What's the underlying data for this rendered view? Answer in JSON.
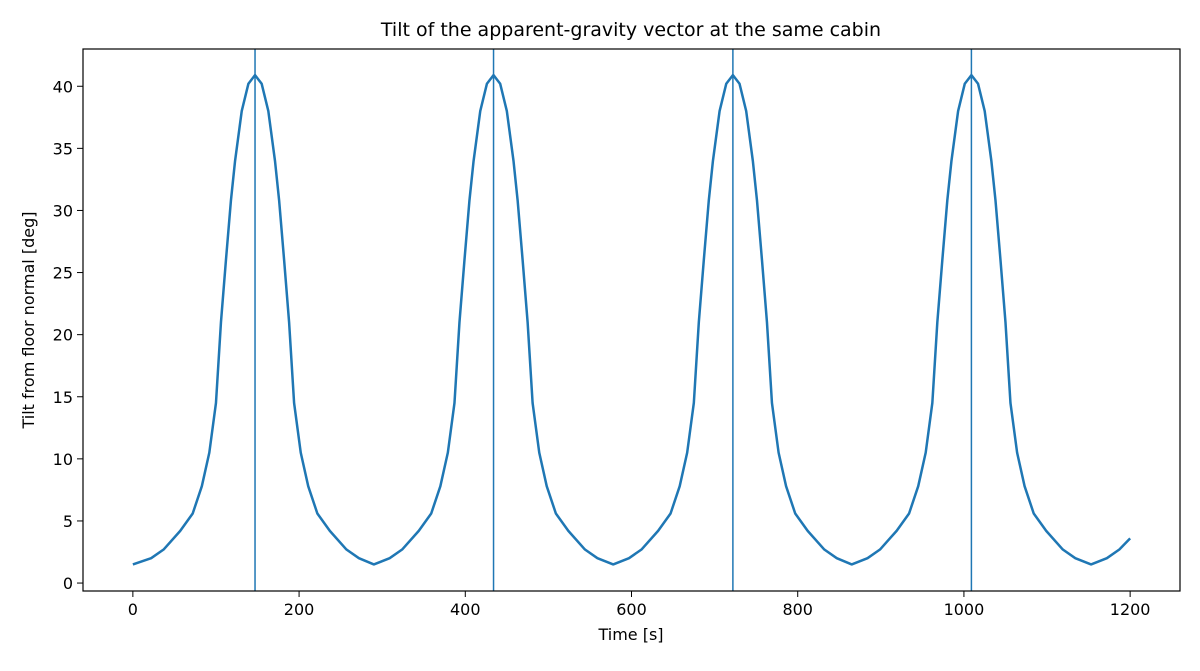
{
  "chart_data": {
    "type": "line",
    "title": "Tilt of the apparent-gravity vector at the same cabin",
    "x_label": "Time [s]",
    "y_label": "Tilt from floor normal [deg]",
    "xlim": [
      -60,
      1260
    ],
    "ylim": [
      -0.64,
      43.0
    ],
    "xticks": [
      0,
      200,
      400,
      600,
      800,
      1000,
      1200
    ],
    "yticks": [
      0,
      5,
      10,
      15,
      20,
      25,
      30,
      35,
      40
    ],
    "vlines": [
      147,
      434,
      722,
      1009
    ],
    "series": [
      {
        "color": "#1f77b4",
        "x": [
          0,
          22,
          37,
          57,
          72,
          83,
          92,
          100,
          106,
          112,
          118,
          123,
          131,
          139,
          147,
          155,
          163,
          171,
          176,
          182,
          188,
          194,
          202,
          211,
          222,
          237,
          257,
          272,
          290,
          309,
          324,
          344,
          359,
          370,
          379,
          387,
          393,
          399,
          405,
          410,
          418,
          426,
          434,
          442,
          450,
          458,
          463,
          469,
          475,
          481,
          489,
          498,
          509,
          524,
          544,
          559,
          578,
          597,
          612,
          632,
          647,
          658,
          667,
          675,
          681,
          687,
          693,
          698,
          706,
          714,
          722,
          730,
          738,
          746,
          751,
          757,
          763,
          769,
          777,
          786,
          797,
          812,
          832,
          847,
          865,
          884,
          899,
          919,
          934,
          945,
          954,
          962,
          968,
          974,
          980,
          985,
          993,
          1001,
          1009,
          1017,
          1025,
          1033,
          1038,
          1044,
          1050,
          1056,
          1064,
          1073,
          1084,
          1099,
          1119,
          1134,
          1153,
          1172,
          1187,
          1200
        ],
        "values": [
          1.5,
          2.0,
          2.7,
          4.2,
          5.6,
          7.8,
          10.5,
          14.5,
          21,
          26,
          30.8,
          34,
          38,
          40.2,
          40.9,
          40.2,
          38,
          34,
          30.8,
          26,
          21,
          14.5,
          10.5,
          7.8,
          5.6,
          4.2,
          2.7,
          2.0,
          1.5,
          2.0,
          2.7,
          4.2,
          5.6,
          7.8,
          10.5,
          14.5,
          21,
          26,
          30.8,
          34,
          38,
          40.2,
          40.9,
          40.2,
          38,
          34,
          30.8,
          26,
          21,
          14.5,
          10.5,
          7.8,
          5.6,
          4.2,
          2.7,
          2.0,
          1.5,
          2.0,
          2.7,
          4.2,
          5.6,
          7.8,
          10.5,
          14.5,
          21,
          26,
          30.8,
          34,
          38,
          40.2,
          40.9,
          40.2,
          38,
          34,
          30.8,
          26,
          21,
          14.5,
          10.5,
          7.8,
          5.6,
          4.2,
          2.7,
          2.0,
          1.5,
          2.0,
          2.7,
          4.2,
          5.6,
          7.8,
          10.5,
          14.5,
          21,
          26,
          30.8,
          34,
          38,
          40.2,
          40.9,
          40.2,
          38,
          34,
          30.8,
          26,
          21,
          14.5,
          10.5,
          7.8,
          5.6,
          4.2,
          2.7,
          2.0,
          1.5,
          2.0,
          2.7,
          3.6
        ]
      }
    ]
  }
}
